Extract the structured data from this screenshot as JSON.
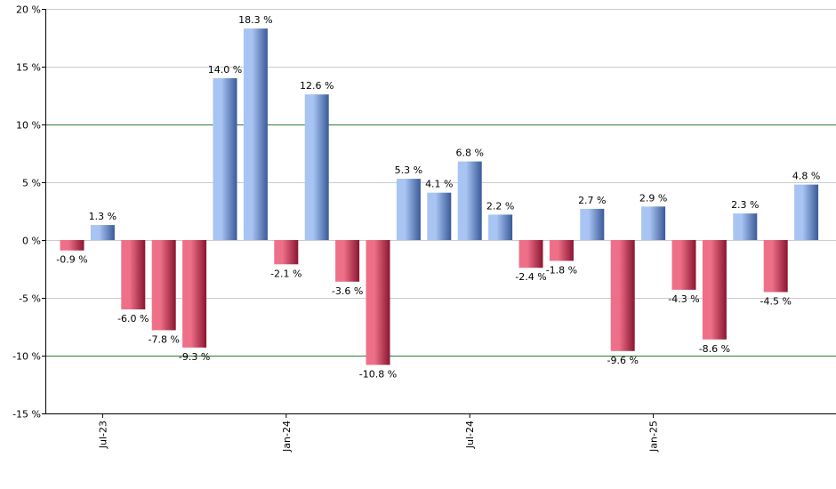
{
  "chart_data": {
    "type": "bar",
    "title": "",
    "xlabel": "",
    "ylabel": "",
    "ylim": [
      -15,
      20
    ],
    "y_ticks": [
      20,
      15,
      10,
      5,
      0,
      -5,
      -10,
      -15
    ],
    "y_tick_labels": [
      "20 %",
      "15 %",
      "10 %",
      "5 %",
      "0 %",
      "-5 %",
      "-10 %",
      "-15 %"
    ],
    "reference_lines": [
      10,
      -10
    ],
    "x_tick_labels": [
      {
        "label": "Jul-23",
        "index": 1
      },
      {
        "label": "Jan-24",
        "index": 7
      },
      {
        "label": "Jul-24",
        "index": 13
      },
      {
        "label": "Jan-25",
        "index": 19
      }
    ],
    "values": [
      -0.9,
      1.3,
      -6.0,
      -7.8,
      -9.3,
      14.0,
      18.3,
      -2.1,
      12.6,
      -3.6,
      -10.8,
      5.3,
      4.1,
      6.8,
      2.2,
      -2.4,
      -1.8,
      2.7,
      -9.6,
      2.9,
      -4.3,
      -8.6,
      2.3,
      -4.5,
      4.8
    ],
    "data_labels": [
      "-0.9 %",
      "1.3 %",
      "-6.0 %",
      "-7.8 %",
      "-9.3 %",
      "14.0 %",
      "18.3 %",
      "-2.1 %",
      "12.6 %",
      "-3.6 %",
      "-10.8 %",
      "5.3 %",
      "4.1 %",
      "6.8 %",
      "2.2 %",
      "-2.4 %",
      "-1.8 %",
      "2.7 %",
      "-9.6 %",
      "2.9 %",
      "-4.3 %",
      "-8.6 %",
      "2.3 %",
      "-4.5 %",
      "4.8 %"
    ],
    "colors": {
      "positive_light": "#a8c4f2",
      "positive_dark": "#3a5a99",
      "negative_light": "#ee7088",
      "negative_dark": "#8a1530",
      "gridline": "#cccccc",
      "reference_line": "#2e7d32",
      "axis": "#000000"
    }
  }
}
